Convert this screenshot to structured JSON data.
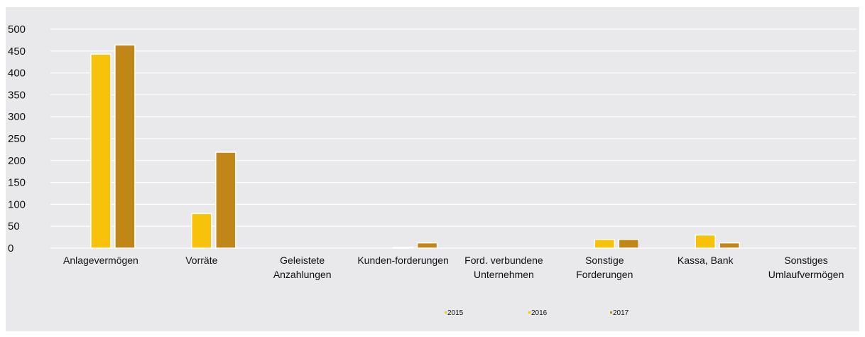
{
  "chart_data": {
    "type": "bar",
    "title": "",
    "xlabel": "",
    "ylabel": "",
    "ylim": [
      0,
      500
    ],
    "yticks": [
      0,
      50,
      100,
      150,
      200,
      250,
      300,
      350,
      400,
      450,
      500
    ],
    "grid": true,
    "legend_position": "bottom",
    "categories": [
      [
        "Anlagevermögen"
      ],
      [
        "Vorräte"
      ],
      [
        "Geleistete",
        "Anzahlungen"
      ],
      [
        "Kunden-forderungen"
      ],
      [
        "Ford. verbundene",
        "Unternehmen"
      ],
      [
        "Sonstige",
        "Forderungen"
      ],
      [
        "Kassa, Bank"
      ],
      [
        "Sonstiges",
        "Umlaufvermögen"
      ]
    ],
    "series": [
      {
        "name": "2015",
        "color": "#f2c42e",
        "values": [
          0,
          0,
          0,
          0,
          0,
          0,
          0,
          0
        ]
      },
      {
        "name": "2016",
        "color": "#f9c20a",
        "values": [
          443,
          79,
          0,
          2,
          0,
          20,
          30,
          0
        ]
      },
      {
        "name": "2017",
        "color": "#c08718",
        "values": [
          464,
          219,
          0,
          12,
          0,
          20,
          12,
          0
        ]
      }
    ]
  }
}
